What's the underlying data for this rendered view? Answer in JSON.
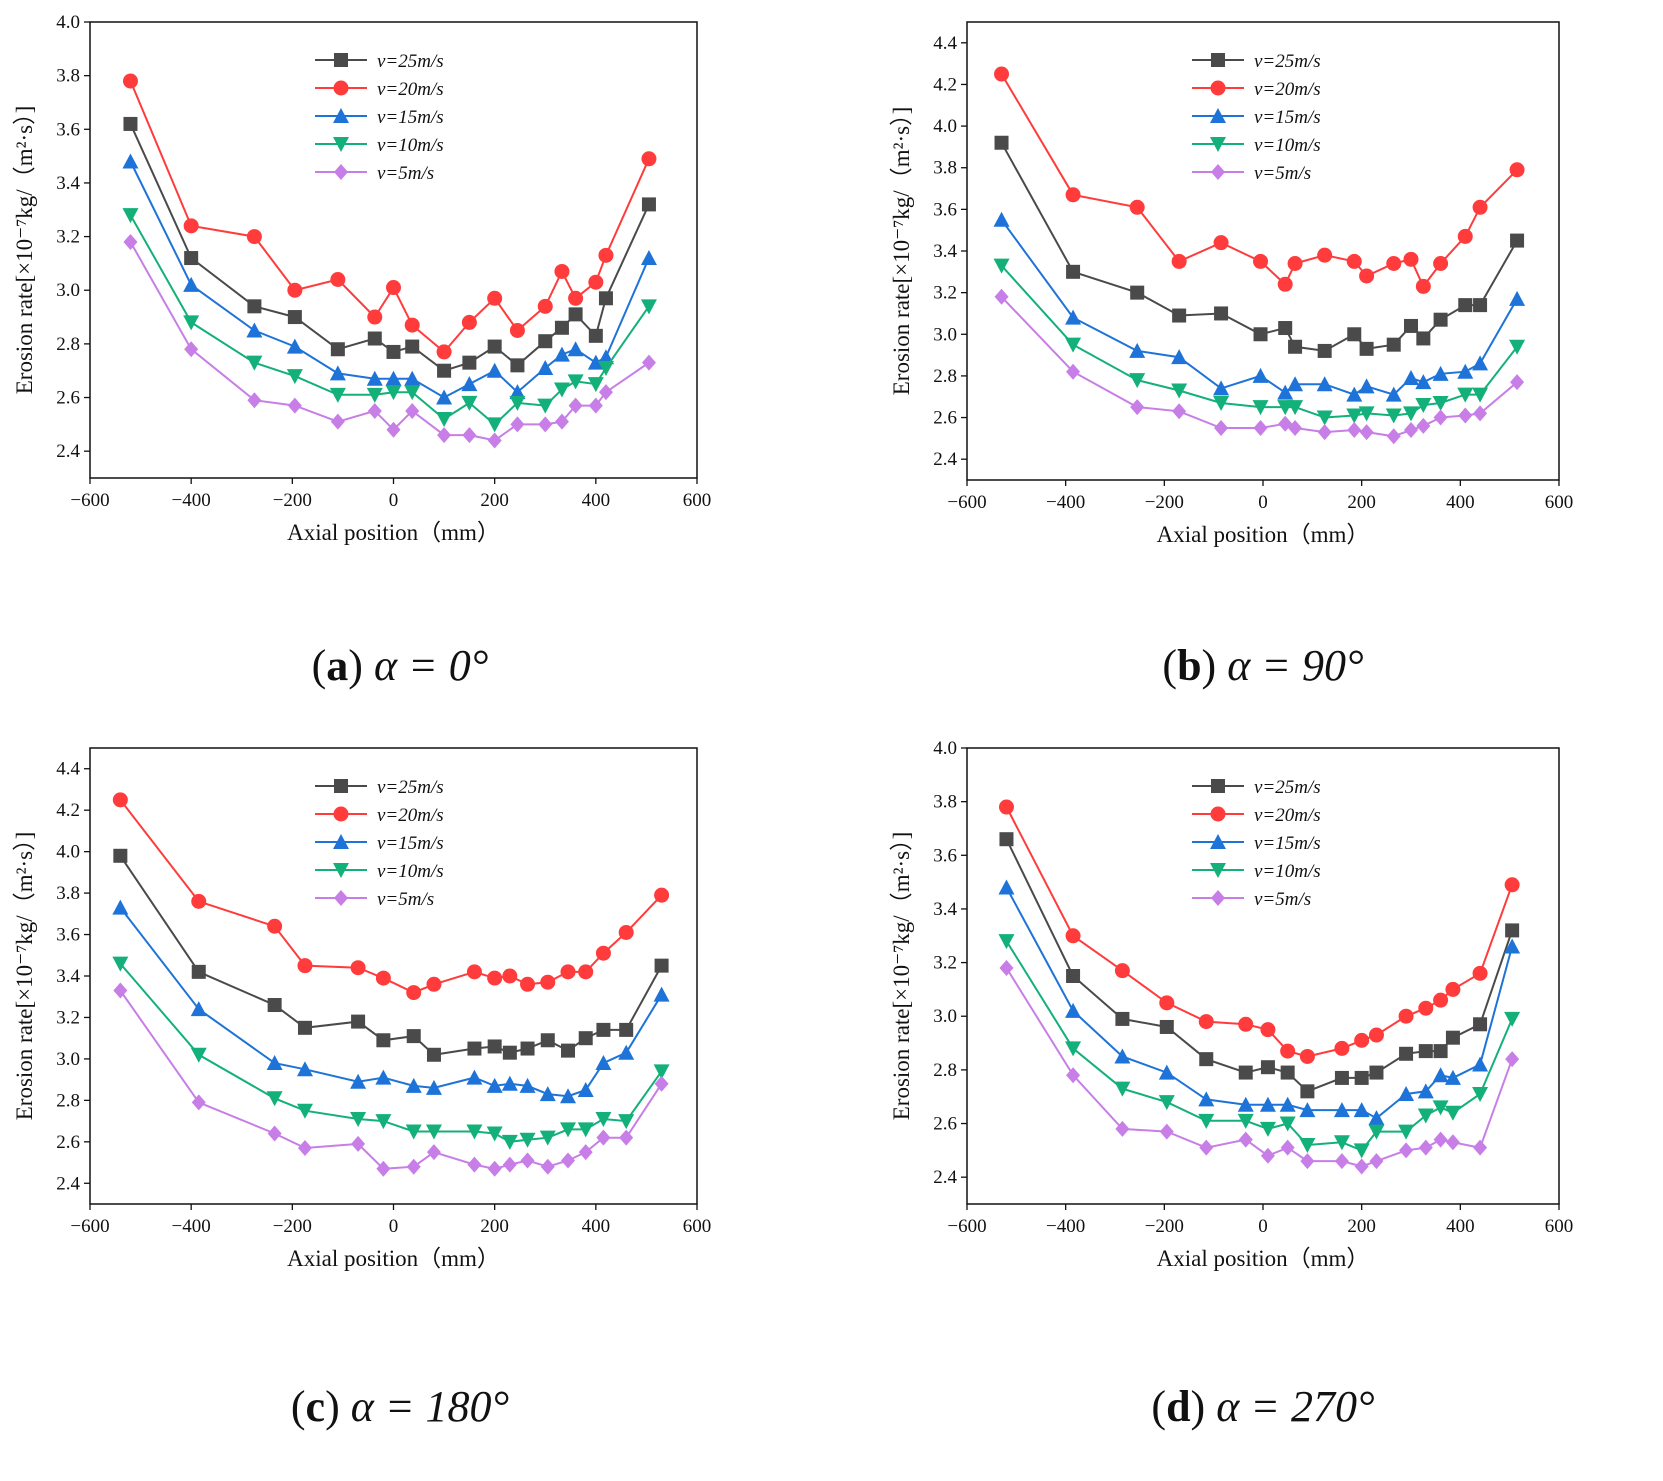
{
  "chart_data": [
    {
      "type": "line",
      "caption": {
        "letter": "a",
        "text": "α = 0°"
      },
      "xlabel": "Axial position（mm）",
      "ylabel": "Erosion rate[×10⁻⁷kg/（m²·s）]",
      "xlim": [
        -600,
        600
      ],
      "ylim": [
        2.3,
        4.0
      ],
      "xticks": [
        -600,
        -400,
        -200,
        0,
        200,
        400,
        600
      ],
      "yticks": [
        2.4,
        2.6,
        2.8,
        3.0,
        3.2,
        3.4,
        3.6,
        3.8,
        4.0
      ],
      "grid": false,
      "legend": "top-center",
      "series": [
        {
          "name": "v=25m/s",
          "color": "#4a4a4a",
          "marker": "square",
          "x": [
            -520,
            -400,
            -275,
            -195,
            -110,
            -37,
            0,
            37,
            100,
            150,
            200,
            245,
            300,
            333,
            360,
            400,
            420,
            505
          ],
          "y": [
            3.62,
            3.12,
            2.94,
            2.9,
            2.78,
            2.82,
            2.77,
            2.79,
            2.7,
            2.73,
            2.79,
            2.72,
            2.81,
            2.86,
            2.91,
            2.83,
            2.97,
            3.32
          ]
        },
        {
          "name": "v=20m/s",
          "color": "#ff3b3b",
          "marker": "circle",
          "x": [
            -520,
            -400,
            -275,
            -195,
            -110,
            -37,
            0,
            37,
            100,
            150,
            200,
            245,
            300,
            333,
            360,
            400,
            420,
            505
          ],
          "y": [
            3.78,
            3.24,
            3.2,
            3.0,
            3.04,
            2.9,
            3.01,
            2.87,
            2.77,
            2.88,
            2.97,
            2.85,
            2.94,
            3.07,
            2.97,
            3.03,
            3.13,
            3.49
          ]
        },
        {
          "name": "v=15m/s",
          "color": "#1e73d8",
          "marker": "triangle-up",
          "x": [
            -520,
            -400,
            -275,
            -195,
            -110,
            -37,
            0,
            37,
            100,
            150,
            200,
            245,
            300,
            333,
            360,
            400,
            420,
            505
          ],
          "y": [
            3.48,
            3.02,
            2.85,
            2.79,
            2.69,
            2.67,
            2.67,
            2.67,
            2.6,
            2.65,
            2.7,
            2.62,
            2.71,
            2.76,
            2.78,
            2.73,
            2.75,
            3.12
          ]
        },
        {
          "name": "v=10m/s",
          "color": "#13b07a",
          "marker": "triangle-down",
          "x": [
            -520,
            -400,
            -275,
            -195,
            -110,
            -37,
            0,
            37,
            100,
            150,
            200,
            245,
            300,
            333,
            360,
            400,
            420,
            505
          ],
          "y": [
            3.28,
            2.88,
            2.73,
            2.68,
            2.61,
            2.61,
            2.62,
            2.62,
            2.52,
            2.58,
            2.5,
            2.58,
            2.57,
            2.63,
            2.66,
            2.65,
            2.71,
            2.94
          ]
        },
        {
          "name": "v=5m/s",
          "color": "#c77ee6",
          "marker": "diamond",
          "x": [
            -520,
            -400,
            -275,
            -195,
            -110,
            -37,
            0,
            37,
            100,
            150,
            200,
            245,
            300,
            333,
            360,
            400,
            420,
            505
          ],
          "y": [
            3.18,
            2.78,
            2.59,
            2.57,
            2.51,
            2.55,
            2.48,
            2.55,
            2.46,
            2.46,
            2.44,
            2.5,
            2.5,
            2.51,
            2.57,
            2.57,
            2.62,
            2.73
          ]
        }
      ]
    },
    {
      "type": "line",
      "caption": {
        "letter": "b",
        "text": "α = 90°"
      },
      "xlabel": "Axial position（mm）",
      "ylabel": "Erosion rate[×10⁻⁷kg/（m²·s）]",
      "xlim": [
        -600,
        600
      ],
      "ylim": [
        2.3,
        4.5
      ],
      "xticks": [
        -600,
        -400,
        -200,
        0,
        200,
        400,
        600
      ],
      "yticks": [
        2.4,
        2.6,
        2.8,
        3.0,
        3.2,
        3.4,
        3.6,
        3.8,
        4.0,
        4.2,
        4.4
      ],
      "grid": false,
      "legend": "top-center",
      "series": [
        {
          "name": "v=25m/s",
          "color": "#4a4a4a",
          "marker": "square",
          "x": [
            -530,
            -385,
            -255,
            -170,
            -85,
            -5,
            45,
            65,
            125,
            185,
            210,
            265,
            300,
            325,
            360,
            410,
            440,
            515
          ],
          "y": [
            3.92,
            3.3,
            3.2,
            3.09,
            3.1,
            3.0,
            3.03,
            2.94,
            2.92,
            3.0,
            2.93,
            2.95,
            3.04,
            2.98,
            3.07,
            3.14,
            3.14,
            3.45
          ]
        },
        {
          "name": "v=20m/s",
          "color": "#ff3b3b",
          "marker": "circle",
          "x": [
            -530,
            -385,
            -255,
            -170,
            -85,
            -5,
            45,
            65,
            125,
            185,
            210,
            265,
            300,
            325,
            360,
            410,
            440,
            515
          ],
          "y": [
            4.25,
            3.67,
            3.61,
            3.35,
            3.44,
            3.35,
            3.24,
            3.34,
            3.38,
            3.35,
            3.28,
            3.34,
            3.36,
            3.23,
            3.34,
            3.47,
            3.61,
            3.79
          ]
        },
        {
          "name": "v=15m/s",
          "color": "#1e73d8",
          "marker": "triangle-up",
          "x": [
            -530,
            -385,
            -255,
            -170,
            -85,
            -5,
            45,
            65,
            125,
            185,
            210,
            265,
            300,
            325,
            360,
            410,
            440,
            515
          ],
          "y": [
            3.55,
            3.08,
            2.92,
            2.89,
            2.74,
            2.8,
            2.72,
            2.76,
            2.76,
            2.71,
            2.75,
            2.71,
            2.79,
            2.77,
            2.81,
            2.82,
            2.86,
            3.17
          ]
        },
        {
          "name": "v=10m/s",
          "color": "#13b07a",
          "marker": "triangle-down",
          "x": [
            -530,
            -385,
            -255,
            -170,
            -85,
            -5,
            45,
            65,
            125,
            185,
            210,
            265,
            300,
            325,
            360,
            410,
            440,
            515
          ],
          "y": [
            3.33,
            2.95,
            2.78,
            2.73,
            2.67,
            2.65,
            2.65,
            2.65,
            2.6,
            2.61,
            2.62,
            2.61,
            2.62,
            2.66,
            2.67,
            2.71,
            2.71,
            2.94
          ]
        },
        {
          "name": "v=5m/s",
          "color": "#c77ee6",
          "marker": "diamond",
          "x": [
            -530,
            -385,
            -255,
            -170,
            -85,
            -5,
            45,
            65,
            125,
            185,
            210,
            265,
            300,
            325,
            360,
            410,
            440,
            515
          ],
          "y": [
            3.18,
            2.82,
            2.65,
            2.63,
            2.55,
            2.55,
            2.57,
            2.55,
            2.53,
            2.54,
            2.53,
            2.51,
            2.54,
            2.56,
            2.6,
            2.61,
            2.62,
            2.77
          ]
        }
      ]
    },
    {
      "type": "line",
      "caption": {
        "letter": "c",
        "text": "α = 180°"
      },
      "xlabel": "Axial position（mm）",
      "ylabel": "Erosion rate[×10⁻⁷kg/（m²·s）]",
      "xlim": [
        -600,
        600
      ],
      "ylim": [
        2.3,
        4.5
      ],
      "xticks": [
        -600,
        -400,
        -200,
        0,
        200,
        400,
        600
      ],
      "yticks": [
        2.4,
        2.6,
        2.8,
        3.0,
        3.2,
        3.4,
        3.6,
        3.8,
        4.0,
        4.2,
        4.4
      ],
      "grid": false,
      "legend": "top-center",
      "series": [
        {
          "name": "v=25m/s",
          "color": "#4a4a4a",
          "marker": "square",
          "x": [
            -540,
            -385,
            -235,
            -175,
            -70,
            -20,
            40,
            80,
            160,
            200,
            230,
            265,
            305,
            345,
            380,
            415,
            460,
            530
          ],
          "y": [
            3.98,
            3.42,
            3.26,
            3.15,
            3.18,
            3.09,
            3.11,
            3.02,
            3.05,
            3.06,
            3.03,
            3.05,
            3.09,
            3.04,
            3.1,
            3.14,
            3.14,
            3.45
          ]
        },
        {
          "name": "v=20m/s",
          "color": "#ff3b3b",
          "marker": "circle",
          "x": [
            -540,
            -385,
            -235,
            -175,
            -70,
            -20,
            40,
            80,
            160,
            200,
            230,
            265,
            305,
            345,
            380,
            415,
            460,
            530
          ],
          "y": [
            4.25,
            3.76,
            3.64,
            3.45,
            3.44,
            3.39,
            3.32,
            3.36,
            3.42,
            3.39,
            3.4,
            3.36,
            3.37,
            3.42,
            3.42,
            3.51,
            3.61,
            3.79
          ]
        },
        {
          "name": "v=15m/s",
          "color": "#1e73d8",
          "marker": "triangle-up",
          "x": [
            -540,
            -385,
            -235,
            -175,
            -70,
            -20,
            40,
            80,
            160,
            200,
            230,
            265,
            305,
            345,
            380,
            415,
            460,
            530
          ],
          "y": [
            3.73,
            3.24,
            2.98,
            2.95,
            2.89,
            2.91,
            2.87,
            2.86,
            2.91,
            2.87,
            2.88,
            2.87,
            2.83,
            2.82,
            2.85,
            2.98,
            3.03,
            3.31
          ]
        },
        {
          "name": "v=10m/s",
          "color": "#13b07a",
          "marker": "triangle-down",
          "x": [
            -540,
            -385,
            -235,
            -175,
            -70,
            -20,
            40,
            80,
            160,
            200,
            230,
            265,
            305,
            345,
            380,
            415,
            460,
            530
          ],
          "y": [
            3.46,
            3.02,
            2.81,
            2.75,
            2.71,
            2.7,
            2.65,
            2.65,
            2.65,
            2.64,
            2.6,
            2.61,
            2.62,
            2.66,
            2.66,
            2.71,
            2.7,
            2.94
          ]
        },
        {
          "name": "v=5m/s",
          "color": "#c77ee6",
          "marker": "diamond",
          "x": [
            -540,
            -385,
            -235,
            -175,
            -70,
            -20,
            40,
            80,
            160,
            200,
            230,
            265,
            305,
            345,
            380,
            415,
            460,
            530
          ],
          "y": [
            3.33,
            2.79,
            2.64,
            2.57,
            2.59,
            2.47,
            2.48,
            2.55,
            2.49,
            2.47,
            2.49,
            2.51,
            2.48,
            2.51,
            2.55,
            2.62,
            2.62,
            2.88
          ]
        }
      ]
    },
    {
      "type": "line",
      "caption": {
        "letter": "d",
        "text": "α = 270°"
      },
      "xlabel": "Axial position（mm）",
      "ylabel": "Erosion rate[×10⁻⁷kg/（m²·s）]",
      "xlim": [
        -600,
        600
      ],
      "ylim": [
        2.3,
        4.0
      ],
      "xticks": [
        -600,
        -400,
        -200,
        0,
        200,
        400,
        600
      ],
      "yticks": [
        2.4,
        2.6,
        2.8,
        3.0,
        3.2,
        3.4,
        3.6,
        3.8,
        4.0
      ],
      "grid": false,
      "legend": "top-center",
      "series": [
        {
          "name": "v=25m/s",
          "color": "#4a4a4a",
          "marker": "square",
          "x": [
            -520,
            -385,
            -285,
            -195,
            -115,
            -35,
            10,
            50,
            90,
            160,
            200,
            230,
            290,
            330,
            360,
            385,
            440,
            505
          ],
          "y": [
            3.66,
            3.15,
            2.99,
            2.96,
            2.84,
            2.79,
            2.81,
            2.79,
            2.72,
            2.77,
            2.77,
            2.79,
            2.86,
            2.87,
            2.87,
            2.92,
            2.97,
            3.32
          ]
        },
        {
          "name": "v=20m/s",
          "color": "#ff3b3b",
          "marker": "circle",
          "x": [
            -520,
            -385,
            -285,
            -195,
            -115,
            -35,
            10,
            50,
            90,
            160,
            200,
            230,
            290,
            330,
            360,
            385,
            440,
            505
          ],
          "y": [
            3.78,
            3.3,
            3.17,
            3.05,
            2.98,
            2.97,
            2.95,
            2.87,
            2.85,
            2.88,
            2.91,
            2.93,
            3.0,
            3.03,
            3.06,
            3.1,
            3.16,
            3.49
          ]
        },
        {
          "name": "v=15m/s",
          "color": "#1e73d8",
          "marker": "triangle-up",
          "x": [
            -520,
            -385,
            -285,
            -195,
            -115,
            -35,
            10,
            50,
            90,
            160,
            200,
            230,
            290,
            330,
            360,
            385,
            440,
            505
          ],
          "y": [
            3.48,
            3.02,
            2.85,
            2.79,
            2.69,
            2.67,
            2.67,
            2.67,
            2.65,
            2.65,
            2.65,
            2.62,
            2.71,
            2.72,
            2.78,
            2.77,
            2.82,
            3.26
          ]
        },
        {
          "name": "v=10m/s",
          "color": "#13b07a",
          "marker": "triangle-down",
          "x": [
            -520,
            -385,
            -285,
            -195,
            -115,
            -35,
            10,
            50,
            90,
            160,
            200,
            230,
            290,
            330,
            360,
            385,
            440,
            505
          ],
          "y": [
            3.28,
            2.88,
            2.73,
            2.68,
            2.61,
            2.61,
            2.58,
            2.6,
            2.52,
            2.53,
            2.5,
            2.57,
            2.57,
            2.63,
            2.66,
            2.64,
            2.71,
            2.99
          ]
        },
        {
          "name": "v=5m/s",
          "color": "#c77ee6",
          "marker": "diamond",
          "x": [
            -520,
            -385,
            -285,
            -195,
            -115,
            -35,
            10,
            50,
            90,
            160,
            200,
            230,
            290,
            330,
            360,
            385,
            440,
            505
          ],
          "y": [
            3.18,
            2.78,
            2.58,
            2.57,
            2.51,
            2.54,
            2.48,
            2.51,
            2.46,
            2.46,
            2.44,
            2.46,
            2.5,
            2.51,
            2.54,
            2.53,
            2.51,
            2.84
          ]
        }
      ]
    }
  ]
}
